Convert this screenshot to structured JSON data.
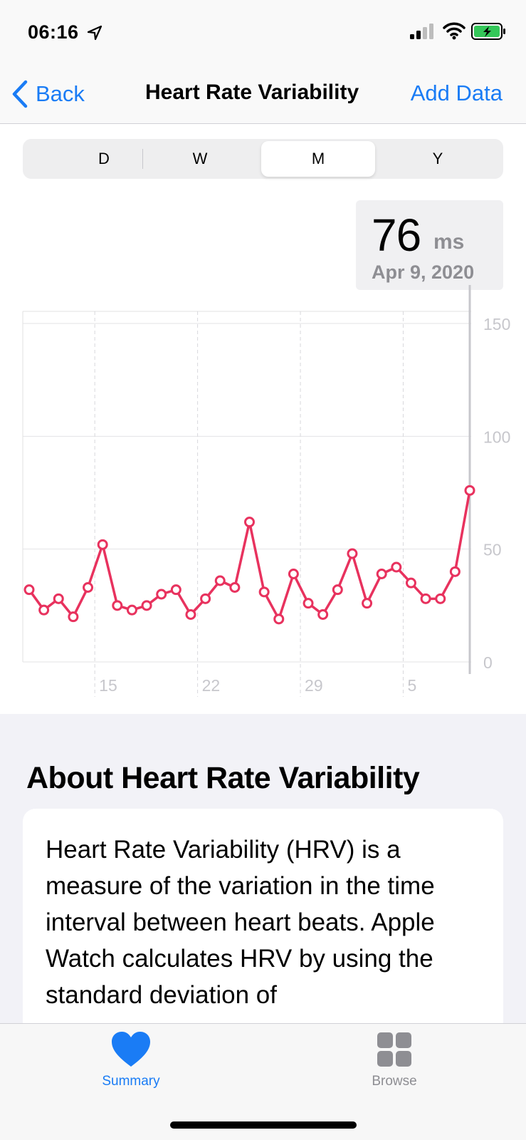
{
  "status_bar": {
    "time": "06:16",
    "location_icon": "location-arrow-icon",
    "signal_icon": "cellular-signal-icon",
    "wifi_icon": "wifi-icon",
    "battery_icon": "battery-charging-icon"
  },
  "nav": {
    "back_label": "Back",
    "title": "Heart Rate Variability",
    "add_data_label": "Add Data"
  },
  "segments": {
    "items": [
      "D",
      "W",
      "M",
      "Y"
    ],
    "selected": "M"
  },
  "readout": {
    "value": "76",
    "unit": "ms",
    "date": "Apr 9, 2020"
  },
  "chart_data": {
    "type": "line",
    "x_tick_labels": [
      "15",
      "22",
      "29",
      "5"
    ],
    "y_tick_labels": [
      "150",
      "100",
      "50",
      "0"
    ],
    "ylim": [
      0,
      150
    ],
    "grid": true,
    "series": [
      {
        "color": "#e8325e",
        "values": [
          32,
          23,
          28,
          20,
          33,
          52,
          25,
          23,
          25,
          30,
          32,
          21,
          28,
          36,
          33,
          62,
          31,
          19,
          39,
          26,
          21,
          32,
          48,
          26,
          39,
          42,
          35,
          28,
          28,
          40,
          76
        ]
      }
    ],
    "selected_index": 30
  },
  "about": {
    "title": "About Heart Rate Variability",
    "text": "Heart Rate Variability (HRV) is a measure of the variation in the time interval between heart beats. Apple Watch calculates HRV by using the standard deviation of"
  },
  "tabs": [
    {
      "label": "Summary",
      "icon": "heart-icon",
      "active": true
    },
    {
      "label": "Browse",
      "icon": "grid-icon",
      "active": false
    }
  ],
  "colors": {
    "accent": "#1a7cf5",
    "series": "#e8325e",
    "secondary_text": "#8e8e93"
  }
}
